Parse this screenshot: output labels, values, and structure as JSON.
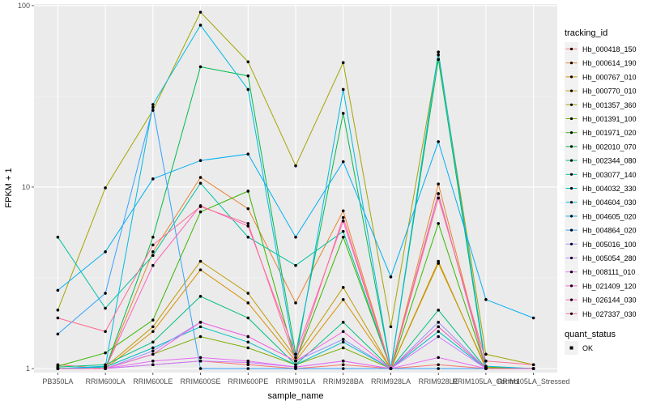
{
  "chart_data": {
    "type": "line",
    "xlabel": "sample_name",
    "ylabel": "FPKM + 1",
    "y_scale": "log10",
    "ylim": [
      0.95,
      102
    ],
    "y_ticks": [
      {
        "value": 1,
        "label": "1"
      },
      {
        "value": 10,
        "label": "10"
      },
      {
        "value": 100,
        "label": "100"
      }
    ],
    "grid": true,
    "legend_position": "right",
    "categories": [
      "PB350LA",
      "RRIM600LA",
      "RRIM600LE",
      "RRIM600SE",
      "RRIM600PE",
      "RRIM901LA",
      "RRIM928BA",
      "RRIM928LA",
      "RRIM928LE",
      "RRIM105LA_Control",
      "RRIM105LA_Stressed"
    ],
    "legend": {
      "color_title": "tracking_id",
      "shape_title": "quant_status",
      "shape_entries": [
        "OK"
      ]
    },
    "series": [
      {
        "name": "Hb_000418_150",
        "color": "#F8766D",
        "values": [
          1.05,
          1.0,
          1.05,
          1.1,
          1.05,
          1.0,
          1.05,
          1.0,
          1.05,
          1.0,
          1.0
        ]
      },
      {
        "name": "Hb_000614_190",
        "color": "#EA8331",
        "values": [
          1.0,
          1.0,
          4.4,
          11.3,
          7.6,
          2.3,
          7.4,
          1.0,
          10.4,
          1.0,
          1.0
        ]
      },
      {
        "name": "Hb_000767_010",
        "color": "#D89000",
        "values": [
          1.0,
          1.0,
          1.6,
          3.5,
          2.3,
          1.1,
          2.4,
          1.0,
          3.9,
          1.0,
          1.0
        ]
      },
      {
        "name": "Hb_000770_010",
        "color": "#C09B00",
        "values": [
          1.0,
          1.02,
          1.7,
          3.9,
          2.6,
          1.15,
          2.8,
          1.0,
          3.8,
          1.02,
          1.0
        ]
      },
      {
        "name": "Hb_001357_360",
        "color": "#A3A500",
        "values": [
          2.1,
          9.9,
          26.5,
          92.0,
          49.0,
          13.1,
          48.5,
          1.7,
          53.5,
          1.2,
          1.05
        ]
      },
      {
        "name": "Hb_001391_100",
        "color": "#7CAE00",
        "values": [
          1.0,
          1.0,
          1.2,
          1.5,
          1.3,
          1.05,
          1.3,
          1.0,
          1.7,
          1.0,
          1.0
        ]
      },
      {
        "name": "Hb_001971_020",
        "color": "#39B600",
        "values": [
          1.03,
          1.22,
          1.85,
          7.3,
          9.5,
          1.1,
          5.3,
          1.0,
          6.3,
          1.01,
          1.0
        ]
      },
      {
        "name": "Hb_002010_070",
        "color": "#00BB4E",
        "values": [
          1.0,
          1.0,
          5.3,
          46.0,
          41.0,
          1.2,
          25.5,
          1.0,
          50.5,
          1.0,
          1.0
        ]
      },
      {
        "name": "Hb_002344_080",
        "color": "#00BF7D",
        "values": [
          1.02,
          1.05,
          1.4,
          2.5,
          1.9,
          1.05,
          1.8,
          1.0,
          2.1,
          1.0,
          1.0
        ]
      },
      {
        "name": "Hb_003077_140",
        "color": "#00C1A3",
        "values": [
          5.3,
          2.15,
          4.2,
          10.5,
          5.3,
          3.7,
          5.7,
          1.0,
          9.2,
          1.0,
          1.0
        ]
      },
      {
        "name": "Hb_004032_330",
        "color": "#00BFC4",
        "values": [
          1.0,
          1.02,
          1.3,
          1.7,
          1.4,
          1.05,
          1.4,
          1.0,
          1.6,
          1.0,
          1.0
        ]
      },
      {
        "name": "Hb_004604_030",
        "color": "#00BAE0",
        "values": [
          1.0,
          1.03,
          28.5,
          78.0,
          34.5,
          1.1,
          34.5,
          1.0,
          55.5,
          1.03,
          1.0
        ]
      },
      {
        "name": "Hb_004605_020",
        "color": "#00B0F6",
        "values": [
          2.7,
          4.4,
          11.1,
          14.0,
          15.2,
          5.3,
          13.8,
          3.2,
          17.8,
          2.4,
          1.9
        ]
      },
      {
        "name": "Hb_004864_020",
        "color": "#35A2FF",
        "values": [
          1.55,
          2.6,
          27.5,
          1.0,
          1.0,
          1.0,
          1.0,
          1.0,
          1.0,
          1.0,
          1.0
        ]
      },
      {
        "name": "Hb_005016_100",
        "color": "#9590FF",
        "values": [
          1.0,
          1.0,
          1.25,
          1.8,
          1.5,
          1.1,
          1.45,
          1.0,
          1.8,
          1.0,
          1.0
        ]
      },
      {
        "name": "Hb_005054_280",
        "color": "#C77CFF",
        "values": [
          1.0,
          1.0,
          1.05,
          1.1,
          1.08,
          1.02,
          1.1,
          1.0,
          1.5,
          1.0,
          1.0
        ]
      },
      {
        "name": "Hb_008111_010",
        "color": "#E76BF3",
        "values": [
          1.0,
          1.0,
          1.1,
          1.15,
          1.1,
          1.02,
          1.1,
          1.0,
          1.15,
          1.0,
          1.0
        ]
      },
      {
        "name": "Hb_021409_120",
        "color": "#FA62DB",
        "values": [
          1.0,
          1.0,
          1.2,
          1.8,
          1.5,
          1.1,
          1.6,
          1.0,
          1.7,
          1.0,
          1.0
        ]
      },
      {
        "name": "Hb_026144_030",
        "color": "#FF62BC",
        "values": [
          1.0,
          1.0,
          3.7,
          7.9,
          6.1,
          1.2,
          6.5,
          1.0,
          9.2,
          1.0,
          1.0
        ]
      },
      {
        "name": "Hb_027337_030",
        "color": "#FF6C91",
        "values": [
          1.9,
          1.6,
          4.8,
          7.8,
          6.3,
          1.1,
          6.8,
          1.0,
          8.7,
          1.1,
          1.05
        ]
      }
    ]
  }
}
